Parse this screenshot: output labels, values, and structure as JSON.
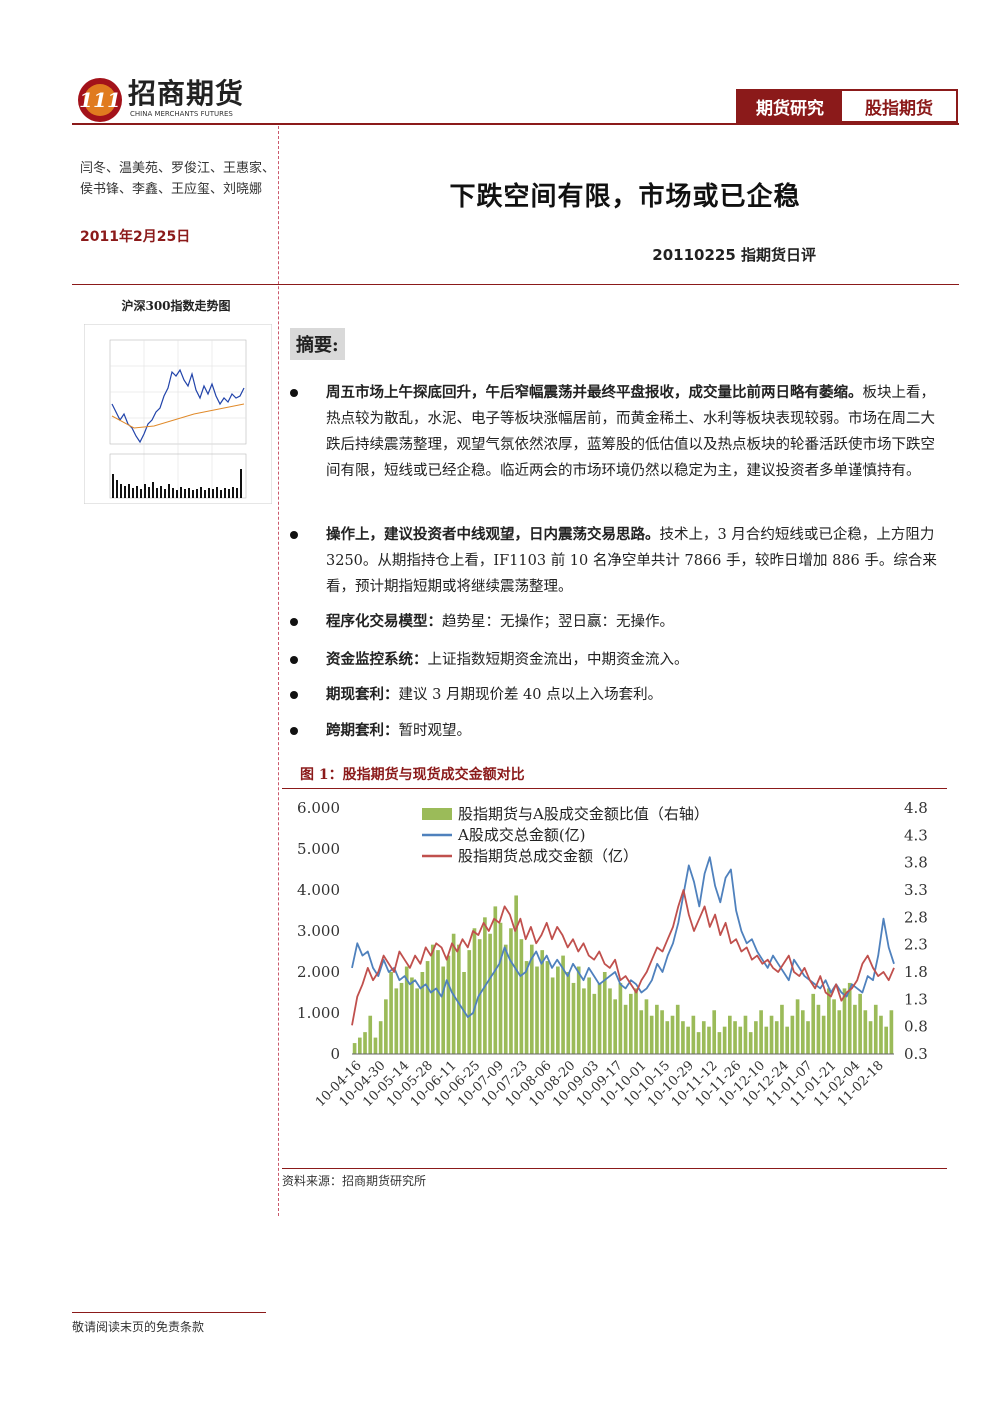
{
  "header": {
    "company_name": "招商期货",
    "company_name_en": "CHINA MERCHANTS FUTURES",
    "tag_primary": "期货研究",
    "tag_secondary": "股指期货"
  },
  "sidebar": {
    "authors": "闫冬、温美苑、罗俊江、王惠家、侯书锋、李鑫、王应玺、刘晓娜",
    "date": "2011年2月25日",
    "mini_chart_title": "沪深300指数走势图"
  },
  "report": {
    "title": "下跌空间有限，市场或已企稳",
    "id": "20110225 指期货日评"
  },
  "summary": {
    "label": "摘要:",
    "bullets": [
      {
        "bold": "周五市场上午探底回升，午后窄幅震荡并最终平盘报收，成交量比前两日略有萎缩。",
        "text": "板块上看，热点较为散乱，水泥、电子等板块涨幅居前，而黄金稀土、水利等板块表现较弱。市场在周二大跌后持续震荡整理，观望气氛依然浓厚，蓝筹股的低估值以及热点板块的轮番活跃使市场下跌空间有限，短线或已经企稳。临近两会的市场环境仍然以稳定为主，建议投资者多单谨慎持有。"
      },
      {
        "bold": "操作上，建议投资者中线观望，日内震荡交易思路。",
        "text": "技术上，3 月合约短线或已企稳，上方阻力 3250。从期指持仓上看，IF1103 前 10 名净空单共计 7866 手，较昨日增加 886 手。综合来看，预计期指短期或将继续震荡整理。"
      },
      {
        "bold": "程序化交易模型：",
        "text": "趋势星：无操作；翌日赢：无操作。"
      },
      {
        "bold": "资金监控系统：",
        "text": "上证指数短期资金流出，中期资金流入。"
      },
      {
        "bold": "期现套利：",
        "text": "建议 3 月期现价差 40 点以上入场套利。"
      },
      {
        "bold": "跨期套利：",
        "text": "暂时观望。"
      }
    ]
  },
  "figure": {
    "title": "图 1：股指期货与现货成交金额对比",
    "source": "资料来源：招商期货研究所"
  },
  "footer": {
    "disclaimer": "敬请阅读末页的免责条款"
  },
  "colors": {
    "brand": "#8b1a1a",
    "bar": "#9bbb59",
    "line_a": "#4f81bd",
    "line_b": "#c0504d"
  },
  "chart_data": {
    "type": "bar",
    "title": "图 1：股指期货与现货成交金额对比",
    "x_tick_labels": [
      "10-04-16",
      "10-04-30",
      "10-05-14",
      "10-05-28",
      "10-06-11",
      "10-06-25",
      "10-07-09",
      "10-07-23",
      "10-08-06",
      "10-08-20",
      "10-09-03",
      "10-09-17",
      "10-10-01",
      "10-10-15",
      "10-10-29",
      "10-11-12",
      "10-11-26",
      "10-12-10",
      "10-12-24",
      "11-01-07",
      "11-01-21",
      "11-02-04",
      "11-02-18"
    ],
    "y_left_ticks": [
      "0",
      "1.000",
      "2.000",
      "3.000",
      "4.000",
      "5.000",
      "6.000"
    ],
    "y_right_ticks": [
      "0.3",
      "0.8",
      "1.3",
      "1.8",
      "2.3",
      "2.8",
      "3.3",
      "3.8",
      "4.3",
      "4.8"
    ],
    "ylim_left": [
      0,
      6000
    ],
    "ylim_right": [
      0.3,
      4.8
    ],
    "legend": [
      "股指期货与A股成交金额比值（右轴）",
      "A股成交总金额(亿)",
      "股指期货总成交金额（亿）"
    ],
    "series": [
      {
        "name": "股指期货与A股成交金额比值（右轴）",
        "axis": "right",
        "type": "bar",
        "values": [
          0.5,
          0.6,
          0.7,
          1.0,
          0.6,
          0.9,
          1.3,
          1.8,
          1.5,
          1.6,
          1.9,
          1.7,
          1.5,
          1.8,
          2.0,
          2.3,
          2.2,
          1.9,
          2.1,
          2.5,
          2.3,
          1.8,
          2.2,
          2.6,
          2.4,
          2.8,
          2.5,
          3.0,
          2.7,
          2.3,
          2.6,
          3.2,
          2.4,
          2.0,
          2.3,
          1.9,
          2.2,
          2.0,
          1.7,
          1.9,
          2.1,
          1.8,
          1.6,
          1.9,
          1.5,
          1.7,
          1.4,
          1.6,
          1.8,
          1.5,
          1.3,
          1.6,
          1.2,
          1.4,
          1.5,
          1.1,
          1.3,
          1.0,
          1.2,
          1.1,
          0.9,
          1.0,
          1.2,
          0.9,
          0.8,
          1.0,
          0.7,
          0.9,
          0.8,
          1.1,
          0.7,
          0.8,
          1.0,
          0.9,
          0.8,
          1.0,
          0.7,
          0.9,
          1.1,
          0.8,
          1.0,
          0.9,
          1.2,
          0.8,
          1.0,
          1.3,
          1.1,
          0.9,
          1.4,
          1.2,
          1.0,
          1.5,
          1.3,
          1.1,
          1.5,
          1.6,
          1.2,
          1.4,
          1.1,
          0.9,
          1.2,
          1.0,
          0.8,
          1.1
        ]
      },
      {
        "name": "A股成交总金额(亿)",
        "axis": "left",
        "type": "line",
        "values": [
          2100,
          2700,
          2400,
          2500,
          2100,
          1900,
          2300,
          2000,
          2100,
          1800,
          1900,
          1700,
          1800,
          1600,
          1700,
          1500,
          1600,
          1400,
          1800,
          1500,
          1300,
          1100,
          900,
          1000,
          1400,
          1600,
          1800,
          2000,
          2200,
          2600,
          2300,
          2100,
          1900,
          2000,
          2300,
          2500,
          2200,
          2400,
          2100,
          2300,
          2100,
          1900,
          2200,
          2000,
          1800,
          2100,
          1900,
          1700,
          1800,
          1900,
          2000,
          1700,
          1600,
          1800,
          1700,
          1500,
          1600,
          1800,
          2200,
          2000,
          2400,
          2700,
          3200,
          3900,
          4600,
          4200,
          3600,
          4400,
          4800,
          4100,
          3700,
          4300,
          4500,
          3500,
          3000,
          2700,
          2800,
          2500,
          2300,
          2100,
          2400,
          2200,
          2000,
          1800,
          2300,
          2100,
          1900,
          1800,
          1700,
          1600,
          1800,
          1500,
          1700,
          1500,
          1400,
          1700,
          1600,
          1500,
          1900,
          1800,
          2400,
          3300,
          2600,
          2200
        ]
      },
      {
        "name": "股指期货总成交金额（亿）",
        "axis": "left",
        "type": "line",
        "values": [
          700,
          1400,
          1700,
          2100,
          1800,
          2000,
          2400,
          2200,
          2000,
          2500,
          2300,
          2100,
          2400,
          2200,
          2600,
          2400,
          2700,
          2600,
          2300,
          2700,
          2500,
          2800,
          2600,
          3000,
          2900,
          3200,
          3000,
          3300,
          3200,
          3600,
          3400,
          3000,
          3300,
          2800,
          3100,
          2700,
          2900,
          3200,
          2800,
          3100,
          2900,
          2600,
          2800,
          2500,
          2700,
          2400,
          2300,
          2500,
          2200,
          2100,
          2300,
          1800,
          1900,
          1700,
          1500,
          1800,
          2000,
          2300,
          2600,
          2500,
          2800,
          3100,
          3600,
          4000,
          3400,
          3000,
          3300,
          3600,
          3100,
          3400,
          2900,
          3200,
          2700,
          2800,
          2500,
          2600,
          2300,
          2400,
          2200,
          2300,
          2100,
          2000,
          2200,
          2400,
          2000,
          1900,
          2100,
          1800,
          1600,
          1900,
          1500,
          1400,
          1700,
          1300,
          1500,
          1600,
          1800,
          2200,
          2400,
          2100,
          1900,
          2000,
          1800,
          2100
        ]
      }
    ]
  }
}
